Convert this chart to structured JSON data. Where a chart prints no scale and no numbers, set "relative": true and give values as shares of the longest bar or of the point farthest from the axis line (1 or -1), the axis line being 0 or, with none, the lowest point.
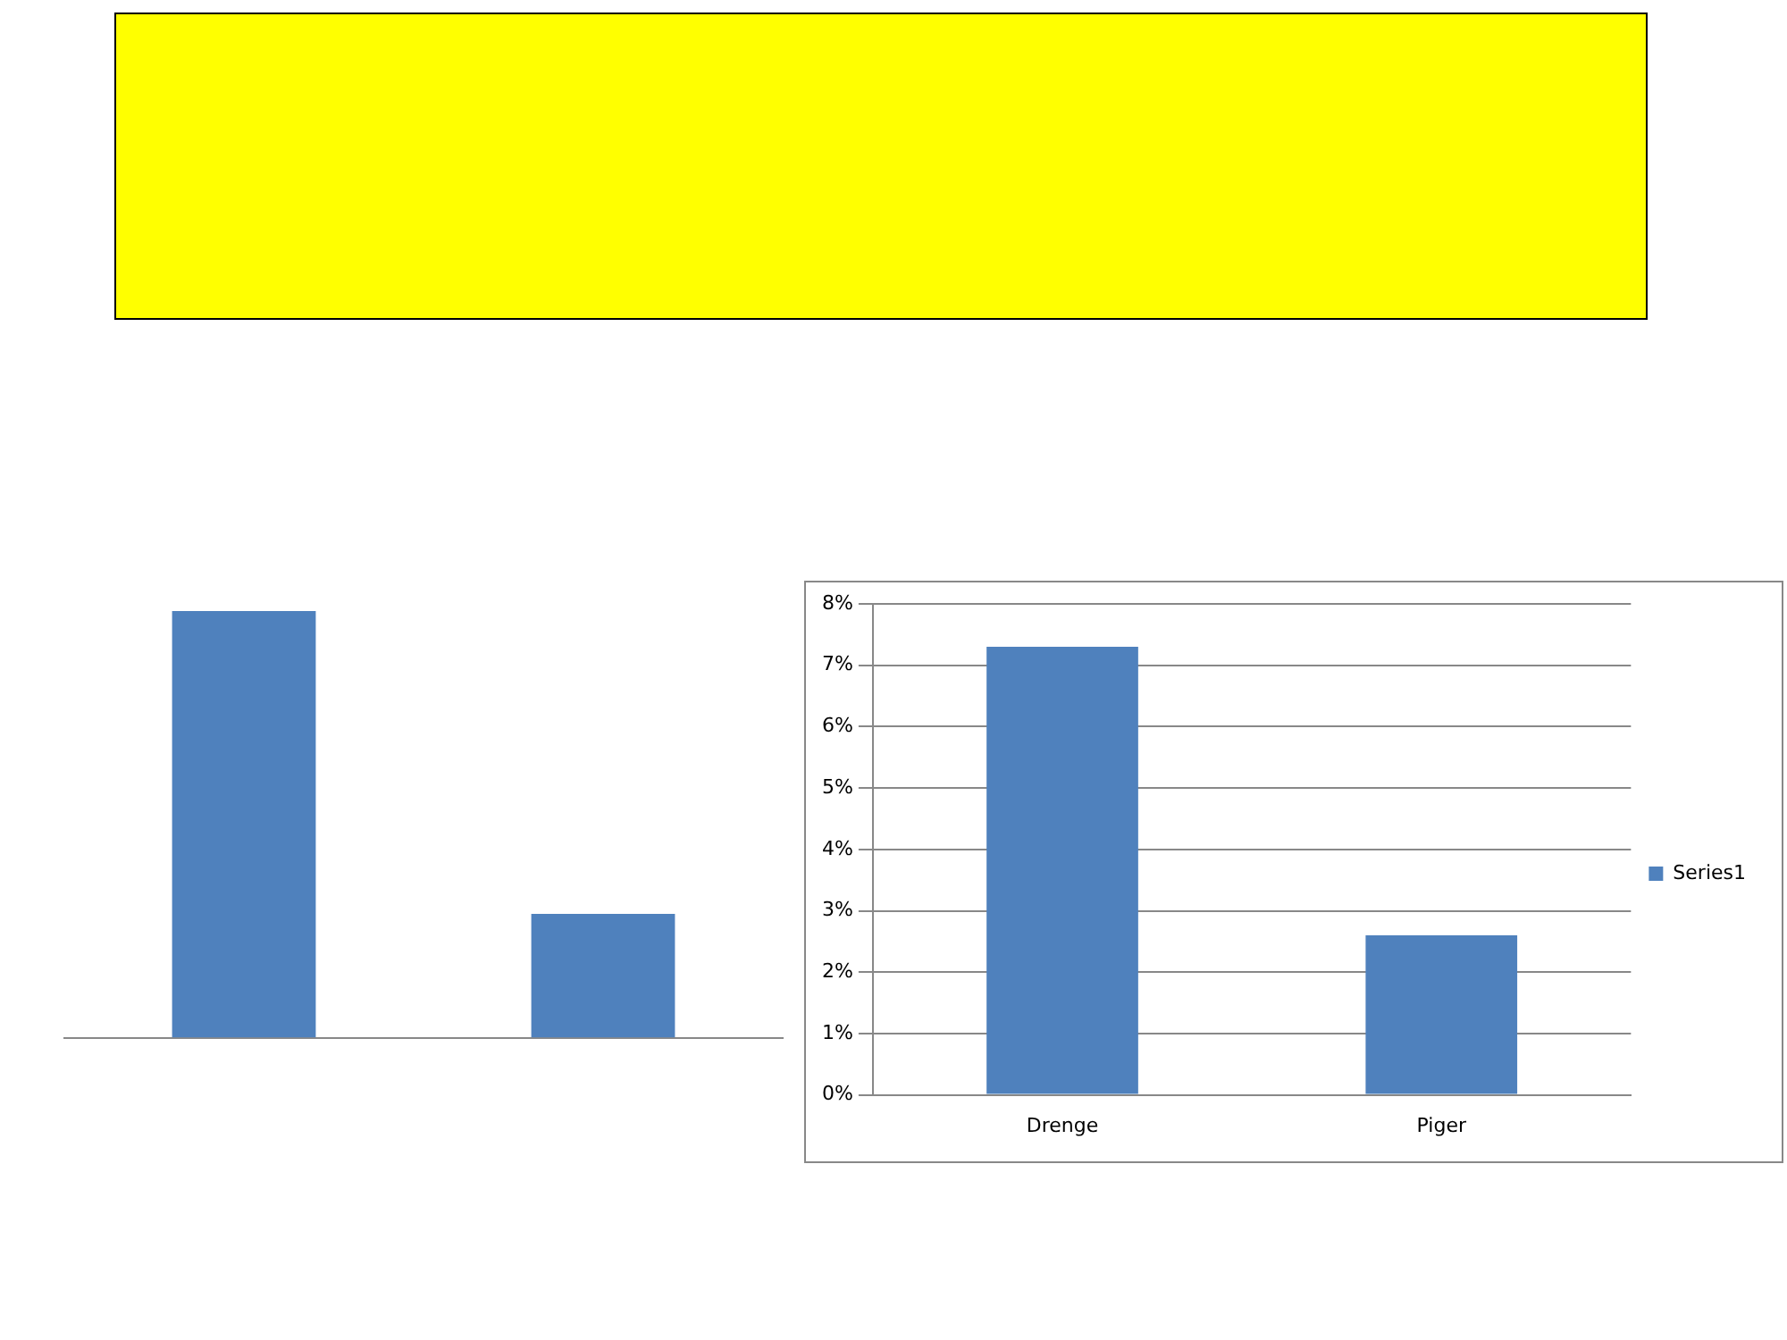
{
  "chart_data": [
    {
      "type": "bar",
      "categories": [
        null,
        null
      ],
      "relative": true,
      "series": [
        {
          "color": "#4f81bd",
          "values": [
            1,
            0.29
          ]
        }
      ],
      "legend": false
    },
    {
      "type": "bar",
      "categories": [
        "Drenge",
        "Piger"
      ],
      "series": [
        {
          "name": "Series1",
          "color": "#4f81bd",
          "values": [
            7.3,
            2.6
          ]
        }
      ],
      "ylim": [
        0,
        8
      ],
      "yticks": [
        {
          "value": 0,
          "label": "0%"
        },
        {
          "value": 1,
          "label": "1%"
        },
        {
          "value": 2,
          "label": "2%"
        },
        {
          "value": 3,
          "label": "3%"
        },
        {
          "value": 4,
          "label": "4%"
        },
        {
          "value": 5,
          "label": "5%"
        },
        {
          "value": 6,
          "label": "6%"
        },
        {
          "value": 7,
          "label": "7%"
        },
        {
          "value": 8,
          "label": "8%"
        }
      ],
      "grid": "y",
      "legend": "right"
    }
  ]
}
